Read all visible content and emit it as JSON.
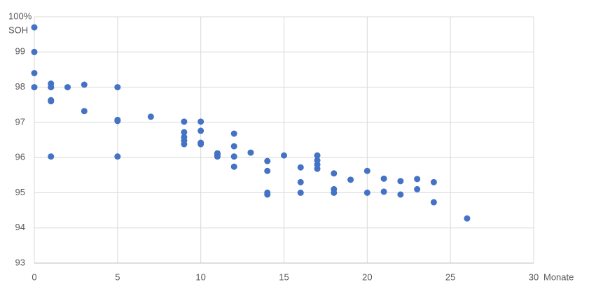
{
  "chart_data": {
    "type": "scatter",
    "y_label": "SOH",
    "x_label": "Monate",
    "color": "#4472c4",
    "grid": true,
    "xlim": [
      0,
      30
    ],
    "xticks": [
      0,
      5,
      10,
      15,
      20,
      25,
      30
    ],
    "ylim": [
      93,
      100
    ],
    "yticks": [
      93,
      94,
      95,
      96,
      97,
      98,
      99,
      {
        "value": 100,
        "label": "100%"
      }
    ],
    "x": [
      0,
      0,
      0,
      0,
      1,
      1,
      1,
      1,
      1,
      2,
      3,
      3,
      5,
      5,
      5,
      5,
      7,
      9,
      9,
      9,
      9,
      9,
      10,
      10,
      10,
      10,
      11,
      11,
      11,
      12,
      12,
      12,
      12,
      13,
      14,
      14,
      14,
      14,
      15,
      16,
      16,
      16,
      17,
      17,
      17,
      17,
      18,
      18,
      18,
      19,
      20,
      20,
      21,
      21,
      22,
      22,
      23,
      23,
      24,
      24,
      26
    ],
    "values": [
      99.7,
      99.0,
      98.4,
      98.0,
      98.1,
      98.0,
      97.63,
      97.6,
      96.03,
      98.0,
      98.07,
      97.32,
      98.0,
      97.07,
      97.04,
      96.03,
      97.16,
      97.02,
      96.72,
      96.58,
      96.48,
      96.38,
      97.02,
      96.76,
      96.42,
      96.38,
      96.12,
      96.08,
      96.03,
      96.68,
      96.32,
      96.03,
      95.74,
      96.14,
      95.9,
      95.62,
      95.0,
      94.95,
      96.06,
      95.72,
      95.3,
      95.0,
      96.06,
      95.92,
      95.8,
      95.68,
      95.55,
      95.1,
      95.0,
      95.37,
      95.62,
      95.0,
      95.4,
      95.03,
      95.33,
      94.95,
      95.39,
      95.1,
      95.3,
      94.73,
      94.27
    ]
  }
}
